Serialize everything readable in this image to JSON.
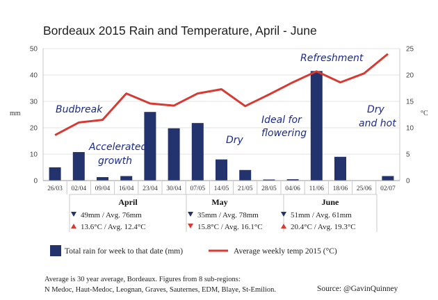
{
  "chart_data": {
    "type": "bar+line",
    "title": "Bordeaux 2015 Rain and Temperature, April - June",
    "ylabel": "mm",
    "y2label": "°C",
    "ylim": [
      0,
      50
    ],
    "y2lim": [
      0,
      25
    ],
    "yticks": [
      "0",
      "10",
      "20",
      "30",
      "40",
      "50"
    ],
    "y2ticks": [
      "0",
      "5",
      "10",
      "15",
      "20",
      "25"
    ],
    "grid": true,
    "categories": [
      "26/03",
      "02/04",
      "09/04",
      "16/04",
      "23/04",
      "30/04",
      "07/05",
      "14/05",
      "21/05",
      "28/05",
      "04/06",
      "11/06",
      "18/06",
      "25/06",
      "02/07"
    ],
    "series": [
      {
        "name": "Total rain for week to that date (mm)",
        "type": "bar",
        "axis": "left",
        "color": "#23336e",
        "values": [
          5,
          10.8,
          1.3,
          1.7,
          26,
          19.8,
          21.8,
          8,
          4,
          0.4,
          0.5,
          41.5,
          9,
          0,
          1.7
        ]
      },
      {
        "name": "Average weekly temp 2015 (°C)",
        "type": "line",
        "axis": "right",
        "color": "#d63a32",
        "values": [
          8.6,
          11,
          11.5,
          16.5,
          14.6,
          14.2,
          16.5,
          17.3,
          14.1,
          16.3,
          18.6,
          20.7,
          18.6,
          20.3,
          24
        ]
      }
    ],
    "annotations": [
      "Budbreak",
      "Accelerated",
      "growth",
      "Dry",
      "Ideal for",
      "flowering",
      "Refreshment",
      "Dry",
      "and hot"
    ],
    "months": [
      {
        "name": "April",
        "rain": "49mm / Avg. 76mm",
        "rain_dir": "down",
        "temp": "13.6°C / Avg. 12.4°C",
        "temp_dir": "up"
      },
      {
        "name": "May",
        "rain": "35mm / Avg. 78mm",
        "rain_dir": "down",
        "temp": "15.8°C / Avg. 16.1°C",
        "temp_dir": "down"
      },
      {
        "name": "June",
        "rain": "51mm / Avg. 61mm",
        "rain_dir": "down",
        "temp": "20.4°C / Avg. 19.3°C",
        "temp_dir": "up"
      }
    ],
    "legend": [
      "Total rain for week to that date (mm)",
      "Average weekly temp 2015 (°C)"
    ],
    "legend_position": "bottom",
    "footnote": [
      "Average is 30 year average, Bordeaux. Figures from 8 sub-regions:",
      "N Medoc, Haut-Medoc, Leognan, Graves, Sauternes, EDM, Blaye, St-Emilion."
    ],
    "source": "Source: @GavinQuinney"
  },
  "colors": {
    "bar": "#23336e",
    "line": "#d63a32",
    "grid": "#e3e3e3",
    "arrow_down": "#23336e",
    "arrow_up": "#d63a32"
  }
}
